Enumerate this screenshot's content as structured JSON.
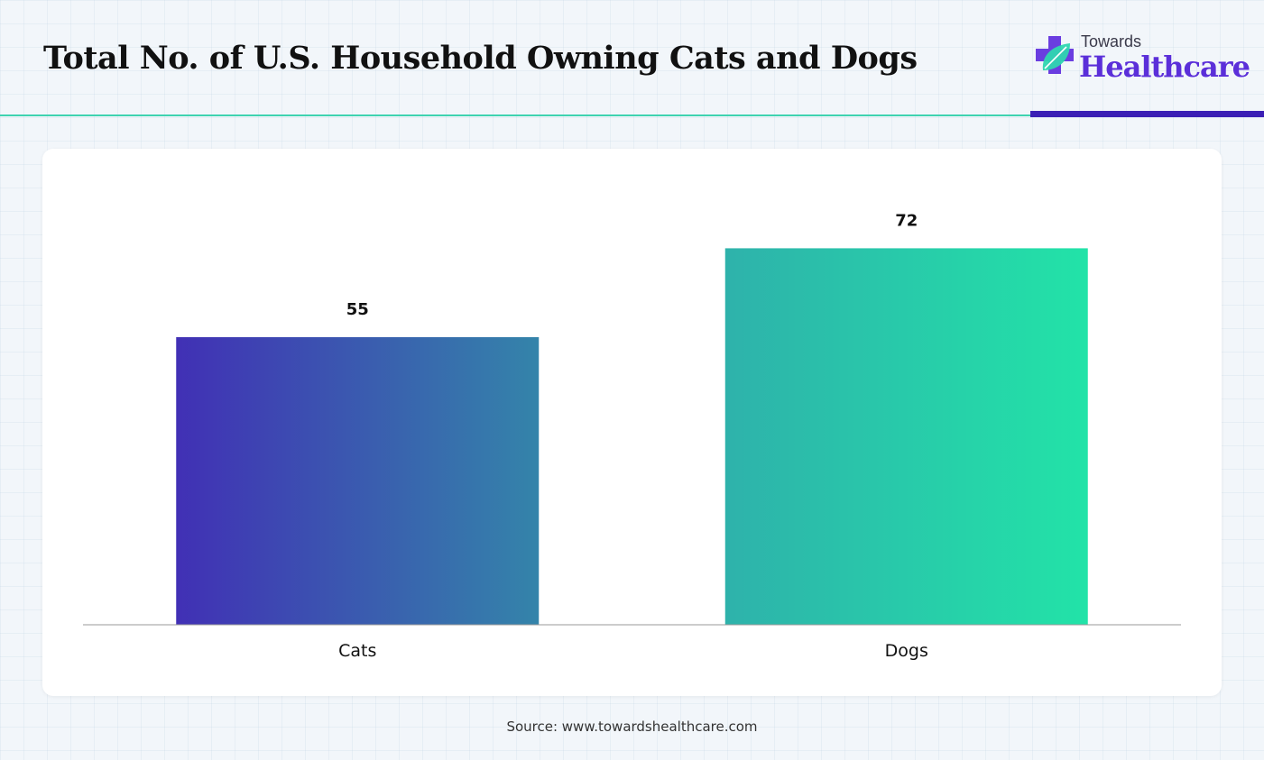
{
  "header": {
    "title": "Total No. of U.S. Household Owning Cats and Dogs"
  },
  "logo": {
    "line1": "Towards",
    "line2": "Healthcare",
    "icon": "medical-cross-leaf-icon"
  },
  "colors": {
    "cats_gradient": [
      "#4130b5",
      "#3484aa"
    ],
    "dogs_gradient": [
      "#2eb2ab",
      "#22e3a8"
    ],
    "accent_teal": "#3fd3b0",
    "accent_purple": "#3b1fb5"
  },
  "chart_data": {
    "type": "bar",
    "categories": [
      "Cats",
      "Dogs"
    ],
    "values": [
      55,
      72
    ],
    "ylim": [
      0,
      85
    ],
    "grid": false,
    "legend": "none"
  },
  "footer": {
    "source": "Source: www.towardshealthcare.com"
  }
}
